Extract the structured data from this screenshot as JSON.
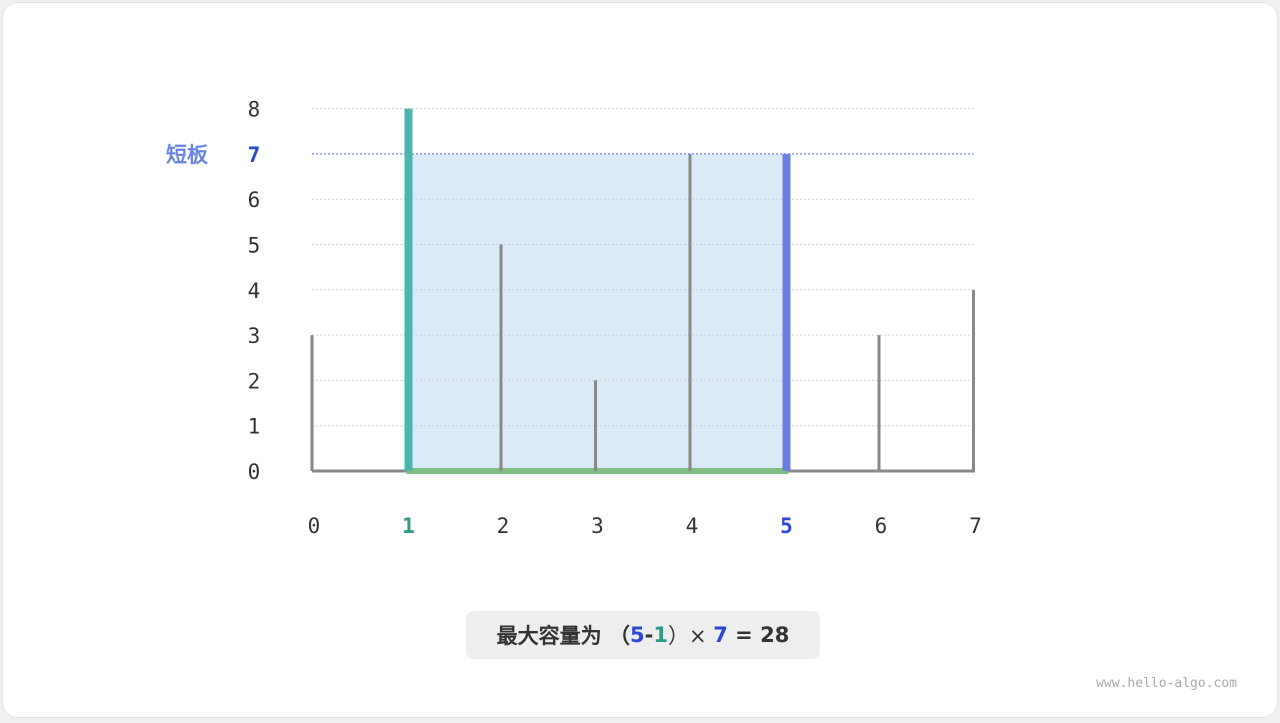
{
  "chart_data": {
    "type": "bar",
    "categories": [
      "0",
      "1",
      "2",
      "3",
      "4",
      "5",
      "6",
      "7"
    ],
    "values": [
      3,
      8,
      5,
      2,
      7,
      7,
      3,
      4
    ],
    "ylim": [
      0,
      8
    ],
    "yticks": [
      "0",
      "1",
      "2",
      "3",
      "4",
      "5",
      "6",
      "7",
      "8"
    ],
    "left_index": 1,
    "right_index": 5,
    "short_height": 7,
    "short_label": "短板",
    "grid": true
  },
  "colors": {
    "left": "#4db6ac",
    "right": "#6b7fe0",
    "area": "#dbeaf8",
    "base": "#7fbf7f",
    "bar": "#888888",
    "highlight_left_text": "#2e9a8a",
    "highlight_right_text": "#2a48d6",
    "short_label": "#6a85e0"
  },
  "caption": {
    "prefix": "最大容量为 （",
    "a": "5",
    "minus": "-",
    "b": "1",
    "times": "）× ",
    "h": "7",
    "result": " = 28"
  },
  "watermark": "www.hello-algo.com"
}
